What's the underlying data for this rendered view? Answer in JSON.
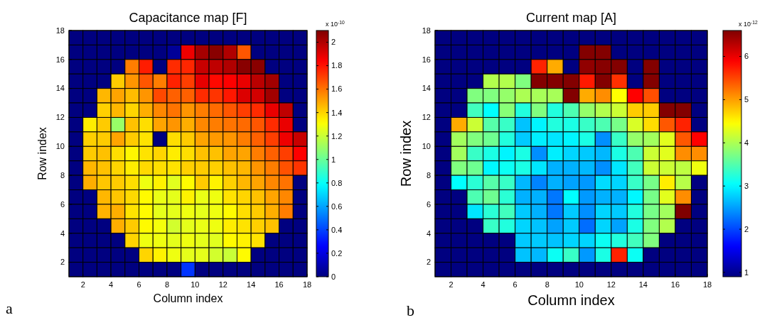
{
  "chart_data": [
    {
      "type": "heatmap",
      "title": "Capacitance map [F]",
      "xlabel": "Column index",
      "ylabel": "Row index",
      "clabel": "x 10$^{-10}$",
      "annotations": [
        "a"
      ],
      "xlim": [
        1,
        18
      ],
      "xticks": [
        2,
        4,
        6,
        8,
        10,
        12,
        14,
        16,
        18
      ],
      "ylim": [
        1,
        18
      ],
      "yticks": [
        2,
        4,
        6,
        8,
        10,
        12,
        14,
        16,
        18
      ],
      "clim": [
        0,
        2.1
      ],
      "cticks": [
        0,
        0.2,
        0.4,
        0.6,
        0.8,
        1,
        1.2,
        1.4,
        1.6,
        1.8,
        2
      ],
      "cells": [
        [
          0,
          0,
          0,
          0,
          0,
          0,
          0,
          0,
          0,
          0,
          0,
          0,
          0,
          0,
          0,
          0,
          0
        ],
        [
          0,
          0,
          0,
          0,
          0,
          0,
          0,
          0.05,
          1.87,
          2.02,
          2.08,
          2.0,
          1.66,
          0,
          0,
          0,
          0
        ],
        [
          0,
          0,
          0,
          0,
          1.58,
          1.78,
          0,
          1.75,
          1.76,
          1.95,
          1.97,
          2.0,
          2.08,
          2.08,
          0,
          0,
          0
        ],
        [
          0,
          0,
          0,
          1.42,
          1.53,
          1.66,
          1.58,
          1.77,
          1.71,
          1.89,
          1.82,
          1.84,
          1.88,
          1.98,
          2.03,
          0,
          0
        ],
        [
          0,
          0,
          1.46,
          1.5,
          1.45,
          1.53,
          1.69,
          1.64,
          1.64,
          1.75,
          1.73,
          1.79,
          1.91,
          1.93,
          2.03,
          0,
          0
        ],
        [
          0,
          0,
          1.41,
          1.46,
          1.4,
          1.48,
          1.56,
          1.6,
          1.53,
          1.58,
          1.62,
          1.66,
          1.71,
          1.75,
          1.88,
          1.97,
          0
        ],
        [
          0,
          1.35,
          1.42,
          1.1,
          1.44,
          1.38,
          1.5,
          1.53,
          1.48,
          1.56,
          1.58,
          1.6,
          1.62,
          1.66,
          1.75,
          1.88,
          0
        ],
        [
          0,
          1.41,
          1.42,
          1.5,
          1.42,
          1.37,
          0,
          1.38,
          1.42,
          1.5,
          1.52,
          1.53,
          1.58,
          1.64,
          1.71,
          1.87,
          1.95
        ],
        [
          0,
          1.42,
          1.44,
          1.38,
          1.33,
          1.37,
          1.4,
          1.35,
          1.38,
          1.44,
          1.44,
          1.5,
          1.5,
          1.58,
          1.64,
          1.71,
          1.84
        ],
        [
          0,
          1.46,
          1.44,
          1.4,
          1.35,
          1.39,
          1.38,
          1.37,
          1.41,
          1.42,
          1.41,
          1.44,
          1.46,
          1.53,
          1.58,
          1.67,
          1.73
        ],
        [
          0,
          1.48,
          1.43,
          1.42,
          1.38,
          1.28,
          1.34,
          1.25,
          1.32,
          1.42,
          1.34,
          1.41,
          1.46,
          1.5,
          1.56,
          1.6,
          0
        ],
        [
          0,
          0,
          1.46,
          1.43,
          1.39,
          1.32,
          1.27,
          1.26,
          1.34,
          1.27,
          1.28,
          1.37,
          1.4,
          1.44,
          1.5,
          1.56,
          0
        ],
        [
          0,
          0,
          1.47,
          1.48,
          1.37,
          1.32,
          1.26,
          1.26,
          1.28,
          1.26,
          1.28,
          1.32,
          1.38,
          1.42,
          1.48,
          1.58,
          0
        ],
        [
          0,
          0,
          0,
          1.48,
          1.42,
          1.32,
          1.29,
          1.22,
          1.26,
          1.27,
          1.28,
          1.35,
          1.37,
          1.41,
          1.44,
          0,
          0
        ],
        [
          0,
          0,
          0,
          0,
          1.4,
          1.28,
          1.28,
          1.26,
          1.28,
          1.26,
          1.25,
          1.32,
          1.34,
          1.37,
          0,
          0,
          0
        ],
        [
          0,
          0,
          0,
          0,
          0,
          1.4,
          1.34,
          1.28,
          1.26,
          1.26,
          1.22,
          1.2,
          1.32,
          0,
          0,
          0,
          0
        ],
        [
          0,
          0,
          0,
          0,
          0,
          0,
          0,
          0,
          0.37,
          0,
          0,
          0,
          0,
          0,
          0,
          0,
          0
        ]
      ]
    },
    {
      "type": "heatmap",
      "title": "Current map [A]",
      "xlabel": "Column index",
      "ylabel": "Row index",
      "clabel": "x 10$^{-12}$",
      "annotations": [
        "b"
      ],
      "xlim": [
        1,
        18
      ],
      "xticks": [
        2,
        4,
        6,
        8,
        10,
        12,
        14,
        16,
        18
      ],
      "ylim": [
        1,
        18
      ],
      "yticks": [
        2,
        4,
        6,
        8,
        10,
        12,
        14,
        16,
        18
      ],
      "clim": [
        0.9,
        6.6
      ],
      "cticks": [
        1,
        2,
        3,
        4,
        5,
        6
      ],
      "cells": [
        [
          0.9,
          0.9,
          0.9,
          0.9,
          0.9,
          0.9,
          0.9,
          0.9,
          0.9,
          0.9,
          0.9,
          0.9,
          0.9,
          0.9,
          0.9,
          0.9,
          0.9
        ],
        [
          0.9,
          0.9,
          0.9,
          0.9,
          0.9,
          0.9,
          0.9,
          0.9,
          0.9,
          6.58,
          6.58,
          0.9,
          0.9,
          0.9,
          0.9,
          0.9,
          0.9
        ],
        [
          0.9,
          0.9,
          0.9,
          0.9,
          0.9,
          0.9,
          5.7,
          4.93,
          0.9,
          6.5,
          6.56,
          6.58,
          0.9,
          6.58,
          0.9,
          0.9,
          0.9
        ],
        [
          0.9,
          0.9,
          0.9,
          4.03,
          4.03,
          3.75,
          6.58,
          6.58,
          6.58,
          5.75,
          6.58,
          5.62,
          0.9,
          6.58,
          0.9,
          0.9,
          0.9
        ],
        [
          0.9,
          0.9,
          3.75,
          3.75,
          3.87,
          4.0,
          3.97,
          3.97,
          6.58,
          4.93,
          5.1,
          4.46,
          5.89,
          5.45,
          0.9,
          0.9,
          0.9
        ],
        [
          0.9,
          0.9,
          3.4,
          3.04,
          3.8,
          3.22,
          3.75,
          3.22,
          3.47,
          3.87,
          4.03,
          4.17,
          4.75,
          4.75,
          6.58,
          6.58,
          0.9
        ],
        [
          0.9,
          4.93,
          4.17,
          3.52,
          3.35,
          2.7,
          2.98,
          3.22,
          3.18,
          3.35,
          3.47,
          3.7,
          4.25,
          4.65,
          5.4,
          5.7,
          0.9
        ],
        [
          0.9,
          3.94,
          3.75,
          3.65,
          3.22,
          2.74,
          2.95,
          2.9,
          2.98,
          3.18,
          2.41,
          3.35,
          3.87,
          3.94,
          4.3,
          5.4,
          5.89
        ],
        [
          0.9,
          3.94,
          3.35,
          3.18,
          2.98,
          3.18,
          2.41,
          2.95,
          2.8,
          2.74,
          2.64,
          3.18,
          3.47,
          4.17,
          4.3,
          5.1,
          5.1
        ],
        [
          0.9,
          3.75,
          3.65,
          3.0,
          3.1,
          3.18,
          2.9,
          2.6,
          2.6,
          2.64,
          2.41,
          2.9,
          3.4,
          4.17,
          4.17,
          4.1,
          4.38
        ],
        [
          0.9,
          3.04,
          3.27,
          3.52,
          3.35,
          2.64,
          2.35,
          2.6,
          2.52,
          2.47,
          2.84,
          2.8,
          3.35,
          3.7,
          4.56,
          4.06,
          0.9
        ],
        [
          0.9,
          0.9,
          3.47,
          3.65,
          3.27,
          2.6,
          2.6,
          2.28,
          3.04,
          2.47,
          2.6,
          2.6,
          3.0,
          3.7,
          4.3,
          5.1,
          0.9
        ],
        [
          0.9,
          0.9,
          2.9,
          3.27,
          3.4,
          2.74,
          2.6,
          2.28,
          2.74,
          2.41,
          2.8,
          2.74,
          3.22,
          3.7,
          3.94,
          6.6,
          0.9
        ],
        [
          0.9,
          0.9,
          0.9,
          3.35,
          3.22,
          2.8,
          2.7,
          2.52,
          2.74,
          2.22,
          2.8,
          2.52,
          3.18,
          3.75,
          4.03,
          0.9,
          0.9
        ],
        [
          0.9,
          0.9,
          0.9,
          0.9,
          0.9,
          2.74,
          2.74,
          2.7,
          2.8,
          2.8,
          3.1,
          3.22,
          3.4,
          3.75,
          0.9,
          0.9,
          0.9
        ],
        [
          0.9,
          0.9,
          0.9,
          0.9,
          0.9,
          2.7,
          2.64,
          3.1,
          3.35,
          2.47,
          3.18,
          5.7,
          3.1,
          0.9,
          0.9,
          0.9,
          0.9
        ],
        [
          0.9,
          0.9,
          0.9,
          0.9,
          0.9,
          0.9,
          0.9,
          0.9,
          0.9,
          0.9,
          0.9,
          0.9,
          0.9,
          0.9,
          0.9,
          0.9,
          0.9
        ]
      ]
    }
  ]
}
